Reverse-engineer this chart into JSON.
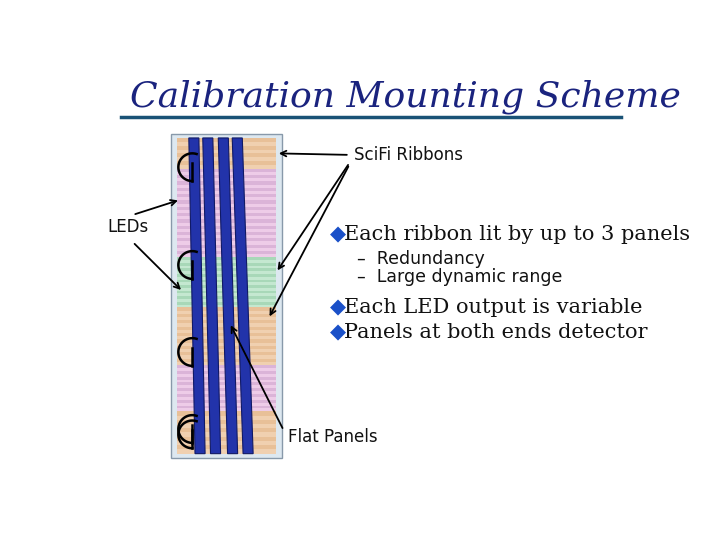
{
  "title": "Calibration Mounting Scheme",
  "title_color": "#1a237e",
  "title_fontsize": 26,
  "bg_color": "#ffffff",
  "line_color": "#1a5276",
  "bullet_color": "#1a50c8",
  "bullet1": "Each ribbon lit by up to 3 panels",
  "sub1": "–  Redundancy",
  "sub2": "–  Large dynamic range",
  "bullet2": "Each LED output is variable",
  "bullet3": "Panels at both ends detector",
  "label_scifi": "SciFi Ribbons",
  "label_leds": "LEDs",
  "label_flat": "Flat Panels",
  "text_color": "#111111",
  "stripe_pink1": "#dbb4d8",
  "stripe_pink2": "#eecce8",
  "stripe_green1": "#a8d8b8",
  "stripe_green2": "#c4e8d0",
  "stripe_peach1": "#e8c098",
  "stripe_peach2": "#f0d0b0",
  "blue_ribbon": "#2233aa",
  "blue_ribbon_dark": "#111a66",
  "panel_bg": "#dde8f0",
  "panel_border": "#8899aa"
}
